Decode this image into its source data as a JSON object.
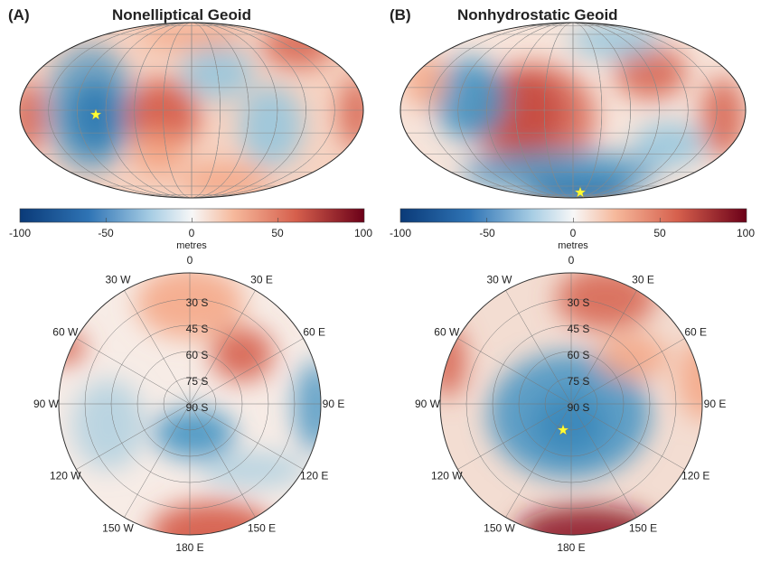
{
  "panels": [
    {
      "label": "(A)",
      "title": "Nonelliptical Geoid",
      "colorbar": {
        "ticks": [
          "-100",
          "-50",
          "0",
          "50",
          "100"
        ],
        "unit": "metres",
        "range": [
          -100,
          100
        ]
      },
      "polar": {
        "longitude_labels": [
          "0",
          "30 E",
          "60 E",
          "90 E",
          "120 E",
          "150 E",
          "180 E",
          "150 W",
          "120 W",
          "90 W",
          "60 W",
          "30 W"
        ],
        "latitude_labels": [
          "30 S",
          "45 S",
          "60 S",
          "75 S",
          "90 S"
        ]
      },
      "marker": "star"
    },
    {
      "label": "(B)",
      "title": "Nonhydrostatic Geoid",
      "colorbar": {
        "ticks": [
          "-100",
          "-50",
          "0",
          "50",
          "100"
        ],
        "unit": "metres",
        "range": [
          -100,
          100
        ]
      },
      "polar": {
        "longitude_labels": [
          "0",
          "30 E",
          "60 E",
          "90 E",
          "120 E",
          "150 E",
          "180 E",
          "150 W",
          "120 W",
          "90 W",
          "60 W",
          "30 W"
        ],
        "latitude_labels": [
          "30 S",
          "45 S",
          "60 S",
          "75 S",
          "90 S"
        ]
      },
      "marker": "star"
    }
  ],
  "colormap": {
    "low": "#0a3a78",
    "mid": "#f7f7f7",
    "high": "#6b0018"
  },
  "marker_color": "#ffff33"
}
